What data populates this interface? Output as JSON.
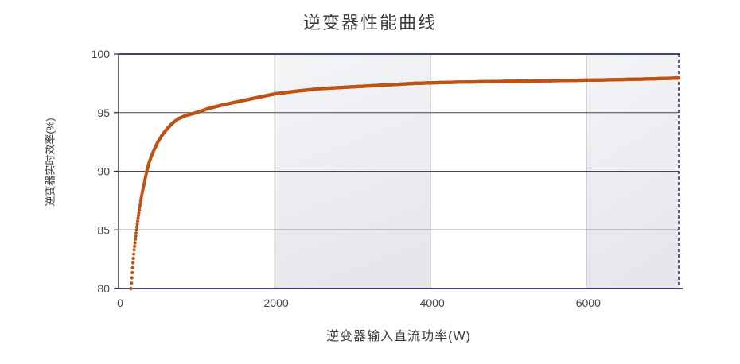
{
  "window": {
    "background": "#ffffff"
  },
  "chart_data": {
    "type": "line",
    "title": "逆变器性能曲线",
    "xlabel": "逆变器输入直流功率(W)",
    "ylabel": "逆变器实时效率(%)",
    "xlim": [
      0,
      7180
    ],
    "ylim": [
      80,
      100
    ],
    "xticks": [
      0,
      2000,
      4000,
      6000
    ],
    "xtick_labels": [
      "0",
      "2000",
      "4000",
      "6000"
    ],
    "yticks": [
      80,
      85,
      90,
      95,
      100
    ],
    "ytick_labels": [
      "80",
      "85",
      "90",
      "95",
      "100"
    ],
    "legend": "none",
    "grid": {
      "horizontal": true,
      "vertical": true
    },
    "shaded_bands_x": [
      [
        2000,
        4000
      ],
      [
        6000,
        7180
      ]
    ],
    "series": [
      {
        "name": "inverter-efficiency-curve",
        "style": "dotted-thick",
        "color": "#bf5316",
        "points": [
          [
            160,
            80.0
          ],
          [
            172,
            81.1
          ],
          [
            185,
            82.2
          ],
          [
            200,
            83.3
          ],
          [
            215,
            84.2
          ],
          [
            232,
            85.1
          ],
          [
            250,
            86.0
          ],
          [
            270,
            86.9
          ],
          [
            290,
            87.7
          ],
          [
            310,
            88.4
          ],
          [
            330,
            89.0
          ],
          [
            355,
            89.8
          ],
          [
            385,
            90.6
          ],
          [
            420,
            91.3
          ],
          [
            460,
            91.9
          ],
          [
            505,
            92.5
          ],
          [
            560,
            93.1
          ],
          [
            620,
            93.6
          ],
          [
            690,
            94.1
          ],
          [
            770,
            94.5
          ],
          [
            860,
            94.75
          ],
          [
            1000,
            95.0
          ],
          [
            1150,
            95.35
          ],
          [
            1300,
            95.6
          ],
          [
            1500,
            95.9
          ],
          [
            1750,
            96.25
          ],
          [
            2000,
            96.6
          ],
          [
            2300,
            96.85
          ],
          [
            2600,
            97.05
          ],
          [
            3000,
            97.2
          ],
          [
            3400,
            97.35
          ],
          [
            3800,
            97.5
          ],
          [
            4200,
            97.58
          ],
          [
            4700,
            97.64
          ],
          [
            5200,
            97.69
          ],
          [
            5700,
            97.74
          ],
          [
            6200,
            97.79
          ],
          [
            6700,
            97.86
          ],
          [
            7180,
            97.95
          ]
        ]
      }
    ],
    "colors": {
      "curve": "#bf5316",
      "band_top": "#f4f5f7",
      "band_bottom": "#e5e7eb",
      "border_navy": "#42426e",
      "right_border_dashed": "#2c3a6e",
      "grid_horizontal": "#46484e",
      "grid_vertical": "#c9ccd1",
      "axis_left": "#333336",
      "tick_text": "#43454a",
      "title_text": "#3a3a3a"
    }
  }
}
